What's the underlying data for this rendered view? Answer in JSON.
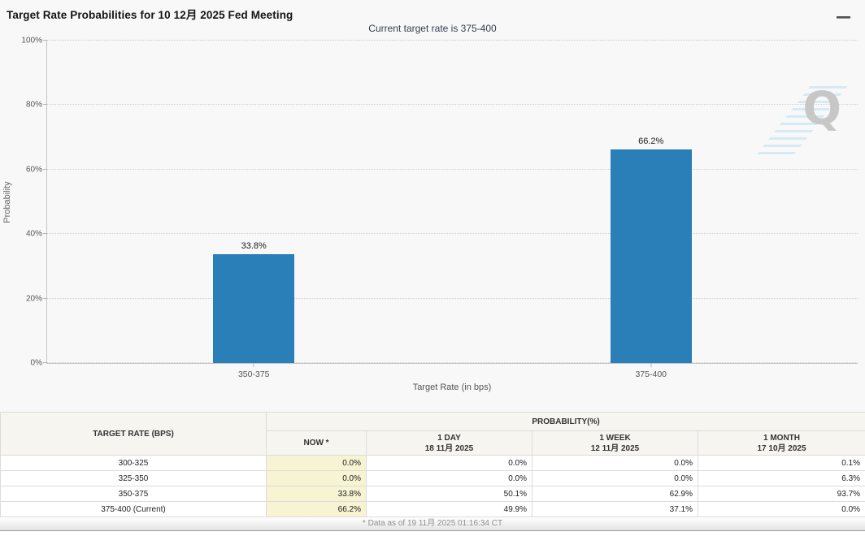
{
  "header": {
    "title": "Target Rate Probabilities for 10 12月 2025 Fed Meeting",
    "subtitle": "Current target rate is 375-400"
  },
  "chart_data": {
    "type": "bar",
    "title": "Target Rate Probabilities for 10 12月 2025 Fed Meeting",
    "categories": [
      "350-375",
      "375-400"
    ],
    "values": [
      33.8,
      66.2
    ],
    "bar_labels": [
      "33.8%",
      "66.2%"
    ],
    "xlabel": "Target Rate (in bps)",
    "ylabel": "Probability",
    "ylim": [
      0,
      100
    ],
    "yticks": [
      "0%",
      "20%",
      "40%",
      "60%",
      "80%",
      "100%"
    ],
    "legend": "none",
    "grid": "horizontal-dotted",
    "bar_color": "#2b7fb8"
  },
  "watermark": {
    "letter": "Q"
  },
  "table": {
    "col1_header": "TARGET RATE (BPS)",
    "group_header": "PROBABILITY(%)",
    "columns": [
      {
        "label": "NOW *",
        "sublabel": ""
      },
      {
        "label": "1 DAY",
        "sublabel": "18 11月 2025"
      },
      {
        "label": "1 WEEK",
        "sublabel": "12 11月 2025"
      },
      {
        "label": "1 MONTH",
        "sublabel": "17 10月 2025"
      }
    ],
    "rows": [
      {
        "rate": "300-325",
        "now": "0.0%",
        "day": "0.0%",
        "week": "0.0%",
        "month": "0.1%"
      },
      {
        "rate": "325-350",
        "now": "0.0%",
        "day": "0.0%",
        "week": "0.0%",
        "month": "6.3%"
      },
      {
        "rate": "350-375",
        "now": "33.8%",
        "day": "50.1%",
        "week": "62.9%",
        "month": "93.7%"
      },
      {
        "rate": "375-400 (Current)",
        "now": "66.2%",
        "day": "49.9%",
        "week": "37.1%",
        "month": "0.0%"
      }
    ]
  },
  "footer": {
    "note": "* Data as of 19 11月 2025 01:16:34 CT"
  },
  "colors": {
    "bar": "#2b7fb8",
    "now_column_bg": "#f6f4d2",
    "table_header_bg": "#f7f5f0",
    "chart_bg": "#f8f8f8",
    "subtitle_text": "#334050"
  }
}
